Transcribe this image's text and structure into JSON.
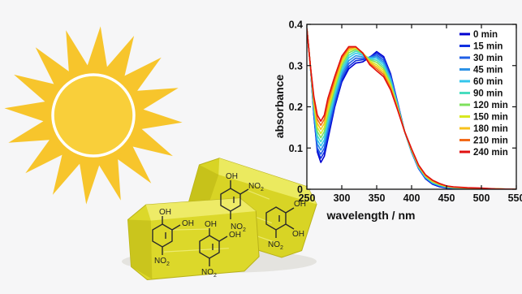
{
  "chart_data": {
    "type": "line",
    "xlabel": "wavelength / nm",
    "ylabel": "absorbance",
    "xlim": [
      250,
      550
    ],
    "ylim": [
      0,
      0.4
    ],
    "x_ticks": [
      "250",
      "300",
      "350",
      "400",
      "450",
      "500",
      "550"
    ],
    "y_ticks": [
      "0",
      "0.1",
      "0.2",
      "0.3",
      "0.4"
    ],
    "legend_position": "top-right",
    "grid": false,
    "wavelength_nm": [
      250,
      255,
      260,
      265,
      270,
      275,
      280,
      290,
      300,
      310,
      320,
      330,
      340,
      350,
      360,
      370,
      380,
      390,
      400,
      410,
      420,
      430,
      440,
      450,
      460,
      480,
      500,
      520,
      550
    ],
    "series": [
      {
        "name": "0 min",
        "color": "#0000d0",
        "values": [
          0.39,
          0.3,
          0.18,
          0.09,
          0.065,
          0.08,
          0.12,
          0.2,
          0.26,
          0.292,
          0.306,
          0.309,
          0.32,
          0.334,
          0.322,
          0.28,
          0.21,
          0.14,
          0.09,
          0.05,
          0.025,
          0.012,
          0.006,
          0.003,
          0.002,
          0.001,
          0.001,
          0.0,
          0.0
        ]
      },
      {
        "name": "15 min",
        "color": "#1030e0",
        "values": [
          0.39,
          0.3,
          0.18,
          0.095,
          0.075,
          0.09,
          0.13,
          0.205,
          0.265,
          0.298,
          0.312,
          0.314,
          0.321,
          0.33,
          0.318,
          0.277,
          0.21,
          0.14,
          0.09,
          0.05,
          0.026,
          0.013,
          0.007,
          0.004,
          0.002,
          0.001,
          0.001,
          0.0,
          0.0
        ]
      },
      {
        "name": "30 min",
        "color": "#1f5fe6",
        "values": [
          0.39,
          0.3,
          0.185,
          0.1,
          0.085,
          0.1,
          0.14,
          0.212,
          0.272,
          0.305,
          0.318,
          0.317,
          0.32,
          0.326,
          0.313,
          0.273,
          0.208,
          0.14,
          0.09,
          0.051,
          0.027,
          0.014,
          0.008,
          0.004,
          0.003,
          0.002,
          0.001,
          0.0,
          0.0
        ]
      },
      {
        "name": "45 min",
        "color": "#2d92e6",
        "values": [
          0.39,
          0.3,
          0.19,
          0.11,
          0.095,
          0.11,
          0.15,
          0.22,
          0.279,
          0.312,
          0.324,
          0.321,
          0.319,
          0.322,
          0.308,
          0.269,
          0.206,
          0.14,
          0.091,
          0.052,
          0.028,
          0.015,
          0.009,
          0.005,
          0.003,
          0.002,
          0.001,
          0.0,
          0.0
        ]
      },
      {
        "name": "60 min",
        "color": "#33c6ec",
        "values": [
          0.39,
          0.3,
          0.195,
          0.12,
          0.105,
          0.12,
          0.16,
          0.228,
          0.286,
          0.319,
          0.33,
          0.325,
          0.318,
          0.318,
          0.303,
          0.265,
          0.204,
          0.14,
          0.092,
          0.053,
          0.029,
          0.016,
          0.009,
          0.005,
          0.003,
          0.002,
          0.001,
          0.0,
          0.0
        ]
      },
      {
        "name": "90 min",
        "color": "#48dcbe",
        "values": [
          0.39,
          0.3,
          0.2,
          0.13,
          0.115,
          0.13,
          0.17,
          0.236,
          0.293,
          0.325,
          0.335,
          0.328,
          0.316,
          0.313,
          0.298,
          0.261,
          0.202,
          0.14,
          0.093,
          0.054,
          0.03,
          0.017,
          0.01,
          0.006,
          0.004,
          0.002,
          0.002,
          0.0,
          0.0
        ]
      },
      {
        "name": "120 min",
        "color": "#7ee05c",
        "values": [
          0.39,
          0.3,
          0.205,
          0.14,
          0.125,
          0.14,
          0.18,
          0.244,
          0.3,
          0.331,
          0.339,
          0.33,
          0.314,
          0.308,
          0.293,
          0.257,
          0.2,
          0.14,
          0.094,
          0.055,
          0.031,
          0.018,
          0.011,
          0.006,
          0.004,
          0.003,
          0.002,
          0.001,
          0.0
        ]
      },
      {
        "name": "150 min",
        "color": "#d8e820",
        "values": [
          0.39,
          0.3,
          0.21,
          0.15,
          0.135,
          0.15,
          0.19,
          0.252,
          0.307,
          0.336,
          0.342,
          0.331,
          0.311,
          0.302,
          0.288,
          0.253,
          0.198,
          0.14,
          0.095,
          0.056,
          0.032,
          0.019,
          0.012,
          0.007,
          0.005,
          0.003,
          0.002,
          0.001,
          0.0
        ]
      },
      {
        "name": "180 min",
        "color": "#f7c11c",
        "values": [
          0.39,
          0.3,
          0.215,
          0.16,
          0.145,
          0.16,
          0.2,
          0.26,
          0.313,
          0.34,
          0.344,
          0.331,
          0.308,
          0.297,
          0.283,
          0.249,
          0.196,
          0.14,
          0.096,
          0.057,
          0.033,
          0.02,
          0.012,
          0.007,
          0.005,
          0.003,
          0.002,
          0.001,
          0.0
        ]
      },
      {
        "name": "210 min",
        "color": "#f26a18",
        "values": [
          0.39,
          0.3,
          0.22,
          0.17,
          0.155,
          0.17,
          0.21,
          0.267,
          0.318,
          0.343,
          0.345,
          0.331,
          0.305,
          0.292,
          0.278,
          0.245,
          0.194,
          0.14,
          0.097,
          0.058,
          0.034,
          0.021,
          0.013,
          0.008,
          0.005,
          0.003,
          0.002,
          0.001,
          0.0
        ]
      },
      {
        "name": "240 min",
        "color": "#e01010",
        "values": [
          0.39,
          0.3,
          0.225,
          0.18,
          0.165,
          0.18,
          0.22,
          0.274,
          0.323,
          0.346,
          0.346,
          0.33,
          0.302,
          0.287,
          0.273,
          0.241,
          0.192,
          0.14,
          0.098,
          0.059,
          0.035,
          0.022,
          0.014,
          0.008,
          0.006,
          0.004,
          0.003,
          0.001,
          0.0
        ]
      }
    ]
  },
  "illustration": {
    "sun_icon": "sun-icon",
    "crystals_icon": "yellow-crystals-icon",
    "molecule_labels": {
      "oh": "OH",
      "no2": "NO2"
    }
  }
}
